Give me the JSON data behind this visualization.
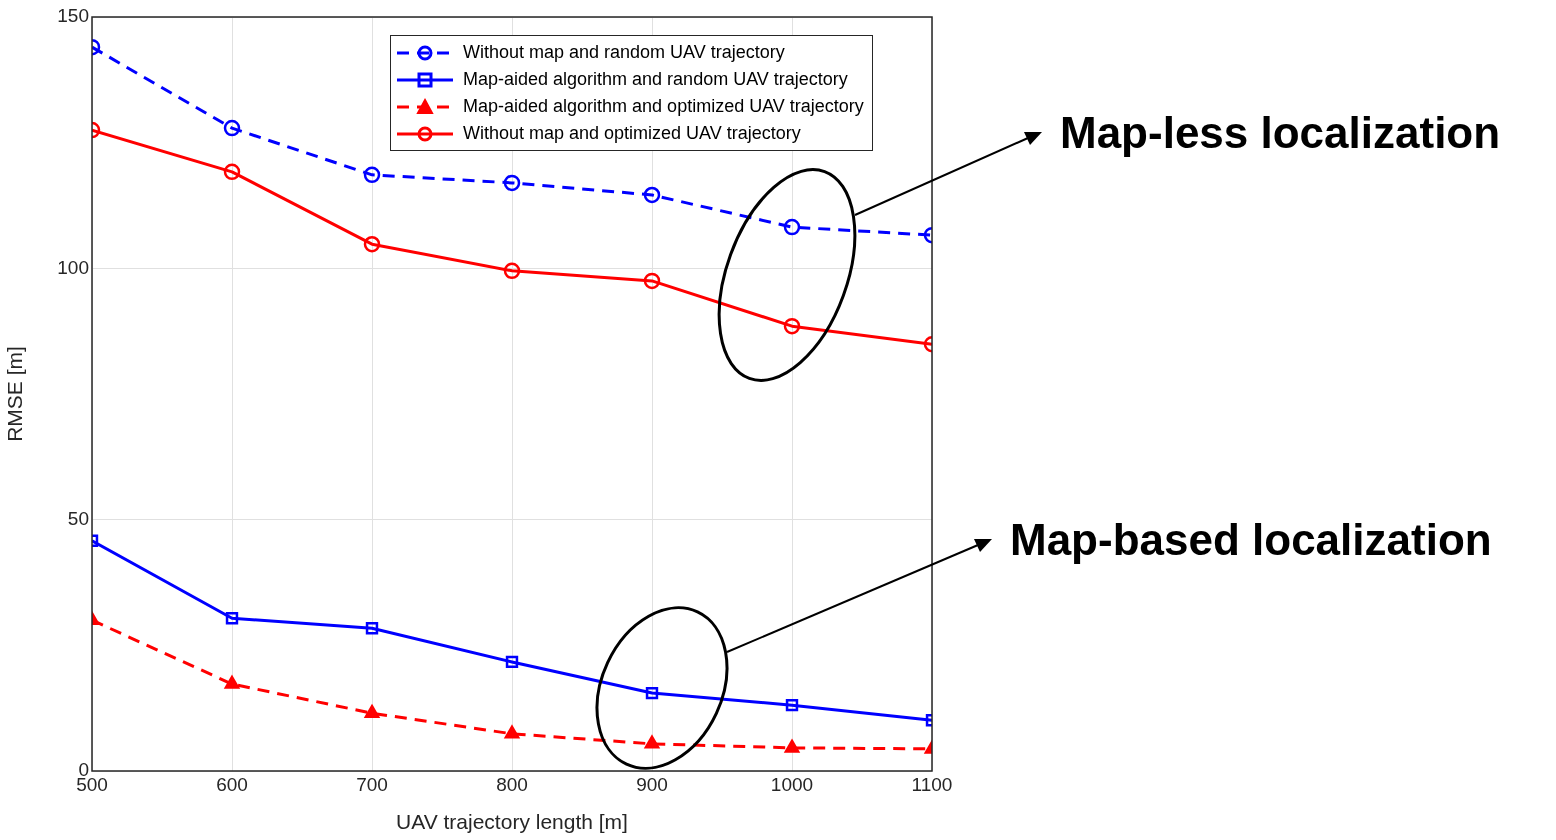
{
  "chart_data": {
    "type": "line",
    "xlabel": "UAV trajectory length [m]",
    "ylabel": "RMSE [m]",
    "x": [
      500,
      600,
      700,
      800,
      900,
      1000,
      1100
    ],
    "series": [
      {
        "name": "Without map and random UAV trajectory",
        "color": "#0000ff",
        "marker": "circle",
        "line_style": "dashed",
        "values": [
          144.0,
          127.9,
          118.6,
          117.0,
          114.6,
          108.2,
          106.6
        ]
      },
      {
        "name": "Map-aided algorithm and random UAV trajectory",
        "color": "#0000ff",
        "marker": "square",
        "line_style": "solid",
        "values": [
          45.8,
          30.4,
          28.4,
          21.7,
          15.5,
          13.1,
          10.1
        ]
      },
      {
        "name": "Map-aided algorithm and optimized UAV trajectory",
        "color": "#ff0000",
        "marker": "triangle",
        "line_style": "dashed",
        "values": [
          30.0,
          17.3,
          11.5,
          7.4,
          5.4,
          4.6,
          4.4
        ]
      },
      {
        "name": "Without map and optimized UAV trajectory",
        "color": "#ff0000",
        "marker": "circle",
        "line_style": "solid",
        "values": [
          127.5,
          119.2,
          104.8,
          99.5,
          97.5,
          88.5,
          84.9
        ]
      }
    ],
    "xlim": [
      500,
      1100
    ],
    "xticks": [
      500,
      600,
      700,
      800,
      900,
      1000,
      1100
    ],
    "ylim": [
      0,
      150
    ],
    "yticks": [
      0,
      50,
      100,
      150
    ],
    "grid": true,
    "legend": "top right",
    "annotations": [
      "Map-less localization",
      "Map-based localization"
    ]
  }
}
